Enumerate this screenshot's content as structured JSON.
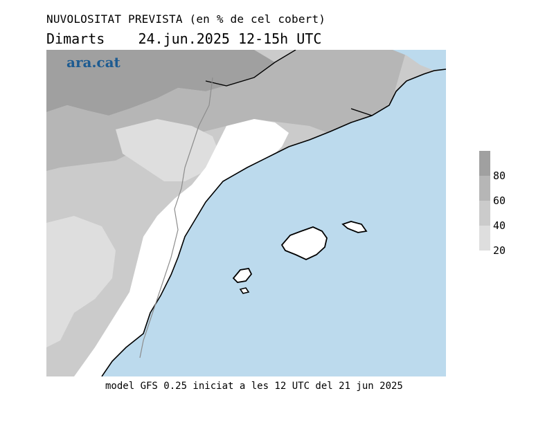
{
  "title": "NUVOLOSITAT PREVISTA (en % de cel cobert)",
  "subtitle": {
    "day": "Dimarts",
    "date": "24.jun.2025",
    "hours": "12-15h UTC"
  },
  "logo": "ara.cat",
  "footer": "model GFS 0.25 iniciat a les 12 UTC del 21 jun 2025",
  "legend": {
    "levels": [
      {
        "label": "80",
        "color": "#a0a0a0"
      },
      {
        "label": "60",
        "color": "#b6b6b6"
      },
      {
        "label": "40",
        "color": "#cbcbcb"
      },
      {
        "label": "20",
        "color": "#dedede"
      }
    ]
  },
  "colors": {
    "sea": "#bcdaed",
    "land_clear": "#ffffff",
    "cloud_20": "#dedede",
    "cloud_40": "#cbcbcb",
    "cloud_60": "#b6b6b6",
    "cloud_80": "#a0a0a0",
    "coastline": "#000000",
    "borders": "#8c8c8c"
  }
}
